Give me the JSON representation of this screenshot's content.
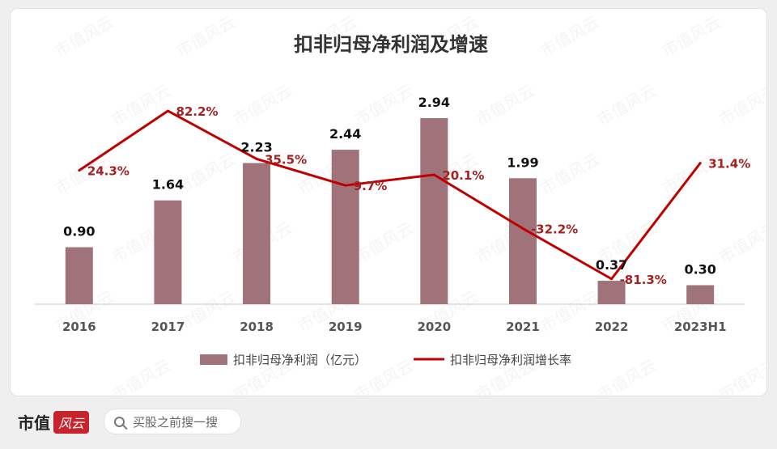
{
  "chart_data": {
    "type": "bar",
    "title": "扣非归母净利润及增速",
    "categories": [
      "2016",
      "2017",
      "2018",
      "2019",
      "2020",
      "2021",
      "2022",
      "2023H1"
    ],
    "series": [
      {
        "name": "扣非归母净利润（亿元）",
        "type": "bar",
        "color": "#a0727a",
        "values": [
          0.9,
          1.64,
          2.23,
          2.44,
          2.94,
          1.99,
          0.37,
          0.3
        ],
        "labels": [
          "0.90",
          "1.64",
          "2.23",
          "2.44",
          "2.94",
          "1.99",
          "0.37",
          "0.30"
        ]
      },
      {
        "name": "扣非归母净利润增长率",
        "type": "line",
        "color": "#c00000",
        "values": [
          24.3,
          82.2,
          35.5,
          9.7,
          20.1,
          -32.2,
          -81.3,
          31.4
        ],
        "labels": [
          "24.3%",
          "82.2%",
          "35.5%",
          "9.7%",
          "20.1%",
          "-32.2%",
          "-81.3%",
          "31.4%"
        ]
      }
    ],
    "ylim": [
      0,
      3.5
    ],
    "y2lim": [
      -105,
      105
    ],
    "grid": false,
    "legend": "bottom"
  },
  "footer": {
    "brand": "市值",
    "brand_seal": "风云",
    "search_text": "买股之前搜一搜"
  },
  "watermark_text": "市值风云"
}
